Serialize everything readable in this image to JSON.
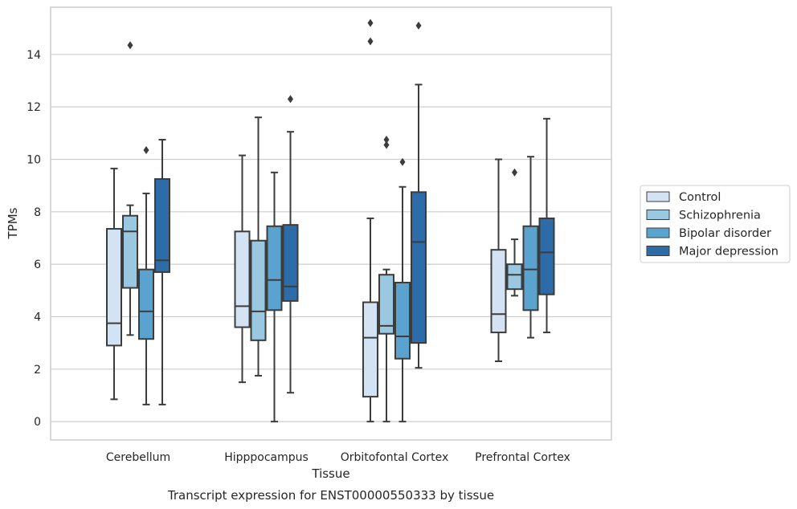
{
  "chart_data": {
    "type": "box",
    "title": "",
    "caption": "Transcript expression for ENST00000550333 by tissue",
    "xlabel": "Tissue",
    "ylabel": "TPMs",
    "ylim": [
      -0.7,
      15.8
    ],
    "yticks": [
      0,
      2,
      4,
      6,
      8,
      10,
      12,
      14
    ],
    "grid": "horizontal",
    "legend_position": "right",
    "categories": [
      "Cerebellum",
      "Hipppocampus",
      "Orbitofontal Cortex",
      "Prefrontal Cortex"
    ],
    "series": [
      {
        "name": "Control",
        "color": "#d4e3f3",
        "boxes": [
          {
            "whisker_low": 0.85,
            "q1": 2.9,
            "median": 3.75,
            "q3": 7.35,
            "whisker_high": 9.65,
            "outliers": []
          },
          {
            "whisker_low": 1.5,
            "q1": 3.6,
            "median": 4.4,
            "q3": 7.25,
            "whisker_high": 10.15,
            "outliers": []
          },
          {
            "whisker_low": 0.0,
            "q1": 0.95,
            "median": 3.2,
            "q3": 4.55,
            "whisker_high": 7.75,
            "outliers": [
              14.5,
              15.2
            ]
          },
          {
            "whisker_low": 2.3,
            "q1": 3.4,
            "median": 4.1,
            "q3": 6.55,
            "whisker_high": 10.0,
            "outliers": []
          }
        ]
      },
      {
        "name": "Schizophrenia",
        "color": "#9ac8e0",
        "boxes": [
          {
            "whisker_low": 3.3,
            "q1": 5.1,
            "median": 7.25,
            "q3": 7.85,
            "whisker_high": 8.25,
            "outliers": [
              14.35
            ]
          },
          {
            "whisker_low": 1.75,
            "q1": 3.1,
            "median": 4.2,
            "q3": 6.9,
            "whisker_high": 11.6,
            "outliers": []
          },
          {
            "whisker_low": 0.0,
            "q1": 3.35,
            "median": 3.65,
            "q3": 5.6,
            "whisker_high": 5.8,
            "outliers": [
              10.55,
              10.75
            ]
          },
          {
            "whisker_low": 4.8,
            "q1": 5.05,
            "median": 5.6,
            "q3": 6.0,
            "whisker_high": 6.95,
            "outliers": [
              9.5
            ]
          }
        ]
      },
      {
        "name": "Bipolar disorder",
        "color": "#5ba3cf",
        "boxes": [
          {
            "whisker_low": 0.65,
            "q1": 3.15,
            "median": 4.2,
            "q3": 5.8,
            "whisker_high": 8.7,
            "outliers": [
              10.35
            ]
          },
          {
            "whisker_low": 0.0,
            "q1": 4.25,
            "median": 5.4,
            "q3": 7.45,
            "whisker_high": 9.5,
            "outliers": []
          },
          {
            "whisker_low": 0.0,
            "q1": 2.4,
            "median": 3.25,
            "q3": 5.3,
            "whisker_high": 8.95,
            "outliers": [
              9.9
            ]
          },
          {
            "whisker_low": 3.2,
            "q1": 4.25,
            "median": 5.8,
            "q3": 7.45,
            "whisker_high": 10.1,
            "outliers": []
          }
        ]
      },
      {
        "name": "Major depression",
        "color": "#2c6ca8",
        "boxes": [
          {
            "whisker_low": 0.65,
            "q1": 5.7,
            "median": 6.15,
            "q3": 9.25,
            "whisker_high": 10.75,
            "outliers": []
          },
          {
            "whisker_low": 1.1,
            "q1": 4.6,
            "median": 5.15,
            "q3": 7.5,
            "whisker_high": 11.05,
            "outliers": [
              12.3
            ]
          },
          {
            "whisker_low": 2.05,
            "q1": 3.0,
            "median": 6.85,
            "q3": 8.75,
            "whisker_high": 12.85,
            "outliers": [
              15.1
            ]
          },
          {
            "whisker_low": 3.4,
            "q1": 4.85,
            "median": 6.45,
            "q3": 7.75,
            "whisker_high": 11.55,
            "outliers": []
          }
        ]
      }
    ]
  }
}
